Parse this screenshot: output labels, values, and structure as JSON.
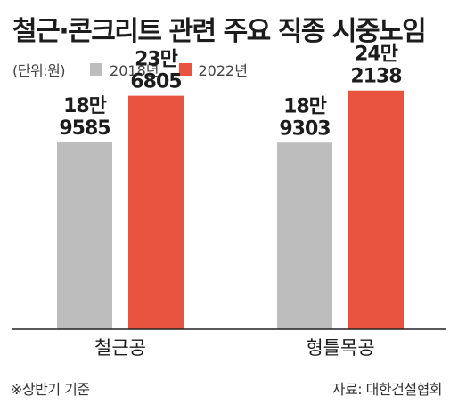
{
  "title": "철근·콘크리트 관련 주요 직종 시중노임",
  "unit": "(단위:원)",
  "footnote": "※상반기 기준",
  "source": "자료: 대한건설협회",
  "colors": {
    "series_2018": "#bdbdbd",
    "series_2022": "#e8543f",
    "axis": "#222222"
  },
  "chart_data": {
    "type": "bar",
    "categories": [
      "철근공",
      "형틀목공"
    ],
    "series": [
      {
        "name": "2018년",
        "values": [
          189585,
          189303
        ],
        "labels": [
          [
            "18만",
            "9585"
          ],
          [
            "18만",
            "9303"
          ]
        ]
      },
      {
        "name": "2022년",
        "values": [
          236805,
          242138
        ],
        "labels": [
          [
            "23만",
            "6805"
          ],
          [
            "24만",
            "2138"
          ]
        ]
      }
    ],
    "ylim": [
      0,
      250000
    ],
    "grid": false,
    "legend": "top-left"
  }
}
